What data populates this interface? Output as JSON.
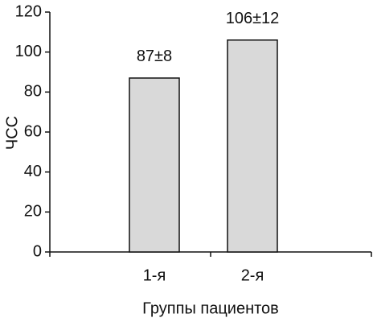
{
  "chart_data": {
    "type": "bar",
    "categories": [
      "1-я",
      "2-я"
    ],
    "values": [
      87,
      106
    ],
    "value_labels": [
      "87±8",
      "106±12"
    ],
    "color": "#d9d9d9",
    "ylabel": "ЧСС",
    "xlabel": "Группы пациентов",
    "ylim": [
      0,
      120
    ],
    "yticks": [
      0,
      20,
      40,
      60,
      80,
      100,
      120
    ],
    "grid": false
  }
}
